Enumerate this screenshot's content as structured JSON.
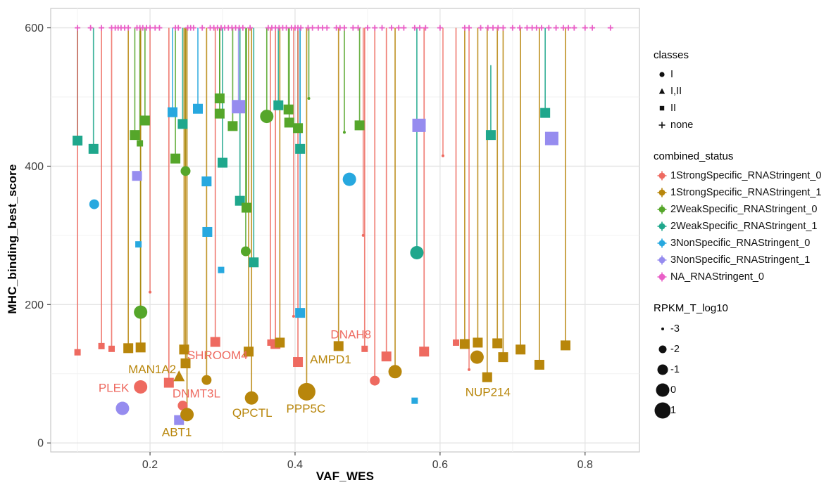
{
  "figure": {
    "xlabel": "VAF_WES",
    "ylabel": "MHC_binding_best_score"
  },
  "legend": {
    "classes": {
      "title": "classes",
      "items": [
        {
          "shape": "circle",
          "label": "I"
        },
        {
          "shape": "triangle",
          "label": "I,II"
        },
        {
          "shape": "square",
          "label": "II"
        },
        {
          "shape": "plus",
          "label": "none"
        }
      ]
    },
    "combined_status": {
      "title": "combined_status",
      "items": [
        {
          "key": "S0",
          "label": "1StrongSpecific_RNAStringent_0"
        },
        {
          "key": "S1",
          "label": "1StrongSpecific_RNAStringent_1"
        },
        {
          "key": "W0",
          "label": "2WeakSpecific_RNAStringent_0"
        },
        {
          "key": "W1",
          "label": "2WeakSpecific_RNAStringent_1"
        },
        {
          "key": "N0",
          "label": "3NonSpecific_RNAStringent_0"
        },
        {
          "key": "N1",
          "label": "3NonSpecific_RNAStringent_1"
        },
        {
          "key": "NA",
          "label": "NA_RNAStringent_0"
        }
      ]
    },
    "size": {
      "title": "RPKM_T_log10",
      "items": [
        {
          "label": "-3",
          "r": 2
        },
        {
          "label": "-2",
          "r": 5.5
        },
        {
          "label": "-1",
          "r": 7.5
        },
        {
          "label": "0",
          "r": 9.5
        },
        {
          "label": "1",
          "r": 11.5
        }
      ]
    }
  },
  "chart_data": {
    "type": "scatter",
    "title": "",
    "xlabel": "VAF_WES",
    "ylabel": "MHC_binding_best_score",
    "xlim": [
      0.063,
      0.875
    ],
    "ylim": [
      -13,
      628
    ],
    "x_ticks": [
      0.2,
      0.4,
      0.6,
      0.8
    ],
    "y_ticks": [
      0,
      200,
      400,
      600
    ],
    "x_minor_ticks": [
      0.1,
      0.3,
      0.5,
      0.7
    ],
    "y_minor_ticks": [
      100,
      300,
      500
    ],
    "grid": true,
    "legend_position": "right",
    "status_colors": {
      "S0": "#EE6A60",
      "S1": "#B8860B",
      "W0": "#55A62A",
      "W1": "#1FA78C",
      "N0": "#27A8DF",
      "N1": "#968CEF",
      "NA": "#E95FC7"
    },
    "size_radius": {
      "1": 2,
      "2": 4.5,
      "3": 7,
      "4": 9.5,
      "5": 12.5
    },
    "na_plus_y": 600,
    "na_plus_x": [
      0.1,
      0.118,
      0.133,
      0.147,
      0.152,
      0.156,
      0.16,
      0.165,
      0.17,
      0.182,
      0.186,
      0.19,
      0.195,
      0.2,
      0.207,
      0.213,
      0.235,
      0.239,
      0.252,
      0.256,
      0.26,
      0.272,
      0.283,
      0.288,
      0.293,
      0.298,
      0.303,
      0.308,
      0.313,
      0.318,
      0.323,
      0.328,
      0.338,
      0.363,
      0.368,
      0.373,
      0.378,
      0.383,
      0.388,
      0.395,
      0.4,
      0.404,
      0.408,
      0.418,
      0.424,
      0.432,
      0.438,
      0.444,
      0.457,
      0.462,
      0.468,
      0.48,
      0.487,
      0.5,
      0.51,
      0.52,
      0.533,
      0.543,
      0.55,
      0.565,
      0.572,
      0.58,
      0.6,
      0.634,
      0.64,
      0.656,
      0.666,
      0.673,
      0.68,
      0.687,
      0.7,
      0.71,
      0.72,
      0.727,
      0.733,
      0.74,
      0.75,
      0.76,
      0.77,
      0.777,
      0.785,
      0.8,
      0.81,
      0.835
    ],
    "points_format": [
      "x",
      "y",
      "shape",
      "status",
      "size_class",
      "stem_from"
    ],
    "points": [
      [
        0.1,
        437,
        "square",
        "W1",
        3,
        600
      ],
      [
        0.122,
        425,
        "square",
        "W1",
        3,
        600
      ],
      [
        0.245,
        461,
        "square",
        "W1",
        3,
        600
      ],
      [
        0.3,
        405,
        "square",
        "W1",
        3,
        600
      ],
      [
        0.324,
        350,
        "square",
        "W1",
        3,
        600
      ],
      [
        0.343,
        261,
        "square",
        "W1",
        3,
        600
      ],
      [
        0.377,
        488,
        "square",
        "W1",
        3,
        600
      ],
      [
        0.407,
        425,
        "square",
        "W1",
        3,
        600
      ],
      [
        0.568,
        275,
        "circle",
        "W1",
        4,
        600
      ],
      [
        0.67,
        445,
        "square",
        "W1",
        3,
        546
      ],
      [
        0.745,
        477,
        "square",
        "W1",
        3,
        600
      ],
      [
        0.179,
        445,
        "square",
        "W0",
        3,
        600
      ],
      [
        0.186,
        433,
        "square",
        "W0",
        2,
        600
      ],
      [
        0.193,
        466,
        "square",
        "W0",
        3,
        600
      ],
      [
        0.235,
        411,
        "square",
        "W0",
        3,
        600
      ],
      [
        0.249,
        393,
        "circle",
        "W0",
        3,
        600
      ],
      [
        0.296,
        498,
        "square",
        "W0",
        3,
        600
      ],
      [
        0.296,
        476,
        "square",
        "W0",
        3,
        600
      ],
      [
        0.314,
        458,
        "square",
        "W0",
        3,
        600
      ],
      [
        0.333,
        340,
        "square",
        "W0",
        3,
        600
      ],
      [
        0.332,
        277,
        "circle",
        "W0",
        3,
        600
      ],
      [
        0.361,
        472,
        "circle",
        "W0",
        4,
        600
      ],
      [
        0.391,
        482,
        "square",
        "W0",
        3,
        600
      ],
      [
        0.392,
        463,
        "square",
        "W0",
        3,
        600
      ],
      [
        0.404,
        455,
        "square",
        "W0",
        3,
        600
      ],
      [
        0.419,
        498,
        "dot",
        "W0",
        1,
        600
      ],
      [
        0.468,
        449,
        "dot",
        "W0",
        1,
        600
      ],
      [
        0.489,
        459,
        "square",
        "W0",
        3,
        600
      ],
      [
        0.187,
        189,
        "circle",
        "W0",
        4,
        600
      ],
      [
        0.231,
        478,
        "square",
        "N0",
        3,
        600
      ],
      [
        0.266,
        483,
        "square",
        "N0",
        3,
        600
      ],
      [
        0.278,
        378,
        "square",
        "N0",
        3,
        null
      ],
      [
        0.279,
        305,
        "square",
        "N0",
        3,
        null
      ],
      [
        0.184,
        287,
        "square",
        "N0",
        2,
        null
      ],
      [
        0.298,
        250,
        "square",
        "N0",
        2,
        null
      ],
      [
        0.123,
        345,
        "circle",
        "N0",
        3,
        null
      ],
      [
        0.475,
        381,
        "circle",
        "N0",
        4,
        null
      ],
      [
        0.407,
        188,
        "square",
        "N0",
        3,
        600
      ],
      [
        0.565,
        61,
        "square",
        "N0",
        2,
        null
      ],
      [
        0.182,
        386,
        "square",
        "N1",
        3,
        null
      ],
      [
        0.322,
        486,
        "square",
        "N1",
        4,
        600
      ],
      [
        0.571,
        459,
        "square",
        "N1",
        4,
        null
      ],
      [
        0.754,
        440,
        "square",
        "N1",
        4,
        null
      ],
      [
        0.24,
        33,
        "square",
        "N1",
        3,
        null
      ],
      [
        0.162,
        50,
        "circle",
        "N1",
        4,
        null
      ],
      [
        0.1,
        131,
        "square",
        "S0",
        2,
        600
      ],
      [
        0.133,
        140,
        "square",
        "S0",
        2,
        600
      ],
      [
        0.147,
        136,
        "square",
        "S0",
        2,
        600
      ],
      [
        0.226,
        87,
        "square",
        "S0",
        3,
        600
      ],
      [
        0.29,
        146,
        "square",
        "S0",
        3,
        600
      ],
      [
        0.366,
        145,
        "square",
        "S0",
        2,
        600
      ],
      [
        0.373,
        143,
        "square",
        "S0",
        3,
        600
      ],
      [
        0.404,
        117,
        "square",
        "S0",
        3,
        600
      ],
      [
        0.496,
        136,
        "square",
        "S0",
        2,
        600
      ],
      [
        0.51,
        90,
        "circle",
        "S0",
        3,
        600
      ],
      [
        0.526,
        125,
        "square",
        "S0",
        3,
        600
      ],
      [
        0.578,
        132,
        "square",
        "S0",
        3,
        600
      ],
      [
        0.622,
        145,
        "square",
        "S0",
        2,
        600
      ],
      [
        0.187,
        81,
        "circle",
        "S0",
        4,
        null
      ],
      [
        0.245,
        54,
        "circle",
        "S0",
        3,
        null
      ],
      [
        0.17,
        137,
        "square",
        "S1",
        3,
        600
      ],
      [
        0.187,
        138,
        "square",
        "S1",
        3,
        600
      ],
      [
        0.24,
        96,
        "triangle",
        "S1",
        3,
        null
      ],
      [
        0.247,
        135,
        "square",
        "S1",
        3,
        600
      ],
      [
        0.249,
        115,
        "square",
        "S1",
        3,
        600
      ],
      [
        0.251,
        41,
        "circle",
        "S1",
        4,
        600
      ],
      [
        0.278,
        91,
        "circle",
        "S1",
        3,
        600
      ],
      [
        0.336,
        132,
        "square",
        "S1",
        3,
        600
      ],
      [
        0.34,
        65,
        "circle",
        "S1",
        4,
        600
      ],
      [
        0.379,
        145,
        "square",
        "S1",
        3,
        600
      ],
      [
        0.416,
        74,
        "circle",
        "S1",
        5,
        600
      ],
      [
        0.46,
        140,
        "square",
        "S1",
        3,
        600
      ],
      [
        0.538,
        103,
        "circle",
        "S1",
        4,
        600
      ],
      [
        0.634,
        143,
        "square",
        "S1",
        3,
        600
      ],
      [
        0.651,
        124,
        "circle",
        "S1",
        4,
        null
      ],
      [
        0.652,
        145,
        "square",
        "S1",
        3,
        600
      ],
      [
        0.665,
        95,
        "square",
        "S1",
        3,
        600
      ],
      [
        0.679,
        144,
        "square",
        "S1",
        3,
        600
      ],
      [
        0.687,
        124,
        "square",
        "S1",
        3,
        600
      ],
      [
        0.711,
        135,
        "square",
        "S1",
        3,
        600
      ],
      [
        0.737,
        113,
        "square",
        "S1",
        3,
        600
      ],
      [
        0.773,
        141,
        "square",
        "S1",
        3,
        600
      ]
    ],
    "extra_stems": [
      {
        "x": 0.2,
        "status": "S0",
        "from": 600,
        "to": 218
      },
      {
        "x": 0.398,
        "status": "S0",
        "from": 600,
        "to": 183
      },
      {
        "x": 0.494,
        "status": "S0",
        "from": 600,
        "to": 300
      },
      {
        "x": 0.604,
        "status": "S0",
        "from": 600,
        "to": 415
      },
      {
        "x": 0.64,
        "status": "S0",
        "from": 600,
        "to": 106
      }
    ],
    "gene_labels": [
      {
        "text": "PLEK",
        "x": 0.15,
        "y": 80,
        "status": "S0"
      },
      {
        "text": "MAN1A2",
        "x": 0.203,
        "y": 107,
        "status": "S1"
      },
      {
        "text": "SHROOM4",
        "x": 0.293,
        "y": 127,
        "status": "S0"
      },
      {
        "text": "DNMT3L",
        "x": 0.264,
        "y": 72,
        "status": "S0"
      },
      {
        "text": "ABT1",
        "x": 0.237,
        "y": 16,
        "status": "S1"
      },
      {
        "text": "QPCTL",
        "x": 0.341,
        "y": 44,
        "status": "S1"
      },
      {
        "text": "PPP5C",
        "x": 0.415,
        "y": 50,
        "status": "S1"
      },
      {
        "text": "AMPD1",
        "x": 0.449,
        "y": 121,
        "status": "S1"
      },
      {
        "text": "DNAH8",
        "x": 0.477,
        "y": 157,
        "status": "S0"
      },
      {
        "text": "NUP214",
        "x": 0.666,
        "y": 74,
        "status": "S1"
      }
    ]
  }
}
